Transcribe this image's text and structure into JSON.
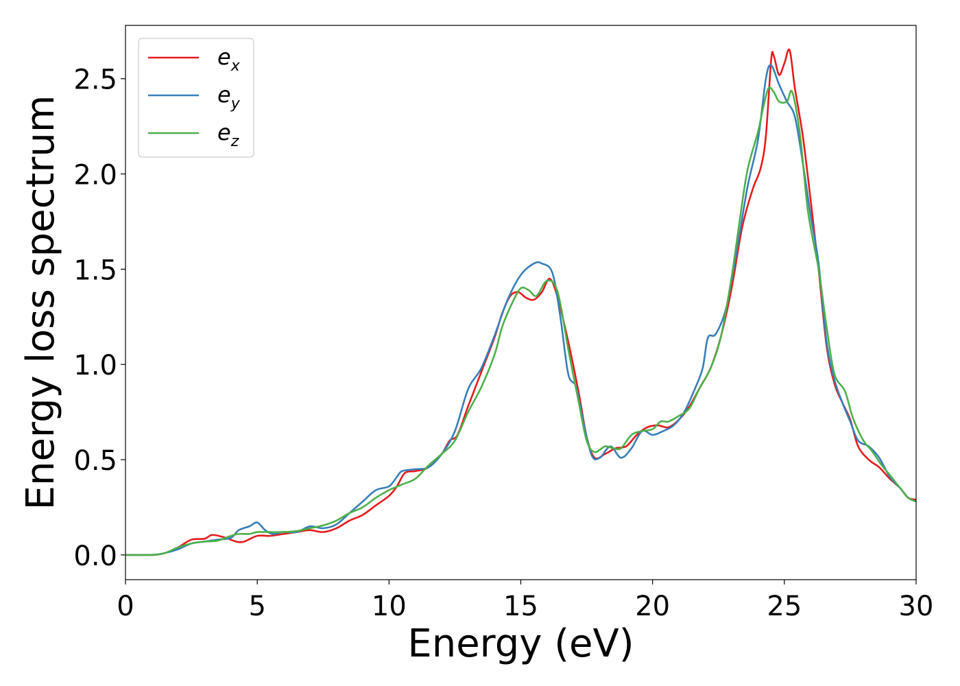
{
  "chart_data": {
    "type": "line",
    "xlabel": "Energy (eV)",
    "ylabel": "Energy loss spectrum",
    "xlim": [
      0,
      30
    ],
    "ylim": [
      -0.13,
      2.78
    ],
    "xticks": [
      0,
      5,
      10,
      15,
      20,
      25,
      30
    ],
    "xtick_labels": [
      "0",
      "5",
      "10",
      "15",
      "20",
      "25",
      "30"
    ],
    "yticks": [
      0.0,
      0.5,
      1.0,
      1.5,
      2.0,
      2.5
    ],
    "ytick_labels": [
      "0.0",
      "0.5",
      "1.0",
      "1.5",
      "2.0",
      "2.5"
    ],
    "grid": false,
    "legend_position": "top-left",
    "series": [
      {
        "name": "e_x",
        "label_main": "e",
        "label_sub": "x",
        "color": "#e41a1c",
        "points": [
          [
            0,
            0
          ],
          [
            1,
            0
          ],
          [
            1.5,
            0.01
          ],
          [
            2,
            0.04
          ],
          [
            2.5,
            0.08
          ],
          [
            3,
            0.085
          ],
          [
            3.3,
            0.105
          ],
          [
            3.8,
            0.09
          ],
          [
            4.2,
            0.07
          ],
          [
            4.5,
            0.07
          ],
          [
            5,
            0.1
          ],
          [
            5.5,
            0.1
          ],
          [
            6,
            0.11
          ],
          [
            6.5,
            0.12
          ],
          [
            7,
            0.13
          ],
          [
            7.5,
            0.12
          ],
          [
            8,
            0.14
          ],
          [
            8.5,
            0.18
          ],
          [
            9,
            0.21
          ],
          [
            9.5,
            0.26
          ],
          [
            10,
            0.31
          ],
          [
            10.3,
            0.36
          ],
          [
            10.6,
            0.43
          ],
          [
            11,
            0.44
          ],
          [
            11.5,
            0.46
          ],
          [
            12,
            0.53
          ],
          [
            12.3,
            0.6
          ],
          [
            12.6,
            0.63
          ],
          [
            13,
            0.78
          ],
          [
            13.5,
            0.96
          ],
          [
            14,
            1.14
          ],
          [
            14.3,
            1.27
          ],
          [
            14.6,
            1.36
          ],
          [
            14.9,
            1.38
          ],
          [
            15.2,
            1.35
          ],
          [
            15.5,
            1.34
          ],
          [
            15.8,
            1.38
          ],
          [
            16.1,
            1.45
          ],
          [
            16.4,
            1.35
          ],
          [
            16.8,
            1.12
          ],
          [
            17.2,
            0.85
          ],
          [
            17.5,
            0.62
          ],
          [
            17.8,
            0.51
          ],
          [
            18.2,
            0.53
          ],
          [
            18.6,
            0.56
          ],
          [
            19,
            0.57
          ],
          [
            19.4,
            0.63
          ],
          [
            19.8,
            0.67
          ],
          [
            20.2,
            0.68
          ],
          [
            20.6,
            0.67
          ],
          [
            21,
            0.71
          ],
          [
            21.4,
            0.78
          ],
          [
            21.8,
            0.88
          ],
          [
            22.2,
            0.98
          ],
          [
            22.6,
            1.15
          ],
          [
            23,
            1.4
          ],
          [
            23.4,
            1.72
          ],
          [
            23.8,
            1.92
          ],
          [
            24.1,
            2.03
          ],
          [
            24.3,
            2.2
          ],
          [
            24.5,
            2.6
          ],
          [
            24.6,
            2.62
          ],
          [
            24.8,
            2.52
          ],
          [
            25,
            2.58
          ],
          [
            25.2,
            2.65
          ],
          [
            25.4,
            2.45
          ],
          [
            25.7,
            2.2
          ],
          [
            26,
            1.86
          ],
          [
            26.3,
            1.5
          ],
          [
            26.6,
            1.1
          ],
          [
            26.9,
            0.9
          ],
          [
            27.2,
            0.8
          ],
          [
            27.5,
            0.71
          ],
          [
            27.8,
            0.57
          ],
          [
            28.2,
            0.5
          ],
          [
            28.6,
            0.46
          ],
          [
            29,
            0.4
          ],
          [
            29.4,
            0.35
          ],
          [
            29.7,
            0.3
          ],
          [
            30,
            0.29
          ]
        ]
      },
      {
        "name": "e_y",
        "label_main": "e",
        "label_sub": "y",
        "color": "#377eb8",
        "points": [
          [
            0,
            0
          ],
          [
            1,
            0
          ],
          [
            1.5,
            0.01
          ],
          [
            2,
            0.03
          ],
          [
            2.5,
            0.06
          ],
          [
            3,
            0.07
          ],
          [
            3.5,
            0.08
          ],
          [
            4,
            0.09
          ],
          [
            4.3,
            0.13
          ],
          [
            4.7,
            0.15
          ],
          [
            5,
            0.17
          ],
          [
            5.3,
            0.13
          ],
          [
            5.6,
            0.11
          ],
          [
            6,
            0.12
          ],
          [
            6.5,
            0.12
          ],
          [
            7,
            0.15
          ],
          [
            7.5,
            0.14
          ],
          [
            8,
            0.16
          ],
          [
            8.5,
            0.22
          ],
          [
            9,
            0.28
          ],
          [
            9.5,
            0.34
          ],
          [
            10,
            0.36
          ],
          [
            10.3,
            0.41
          ],
          [
            10.5,
            0.44
          ],
          [
            11,
            0.45
          ],
          [
            11.5,
            0.46
          ],
          [
            12,
            0.53
          ],
          [
            12.5,
            0.65
          ],
          [
            13,
            0.87
          ],
          [
            13.5,
            0.98
          ],
          [
            14,
            1.15
          ],
          [
            14.5,
            1.34
          ],
          [
            15,
            1.47
          ],
          [
            15.5,
            1.53
          ],
          [
            15.8,
            1.53
          ],
          [
            16.2,
            1.48
          ],
          [
            16.5,
            1.25
          ],
          [
            16.8,
            0.95
          ],
          [
            17.1,
            0.88
          ],
          [
            17.4,
            0.68
          ],
          [
            17.7,
            0.52
          ],
          [
            18,
            0.51
          ],
          [
            18.4,
            0.57
          ],
          [
            18.8,
            0.51
          ],
          [
            19.2,
            0.56
          ],
          [
            19.6,
            0.65
          ],
          [
            20,
            0.63
          ],
          [
            20.4,
            0.65
          ],
          [
            20.8,
            0.68
          ],
          [
            21.2,
            0.75
          ],
          [
            21.6,
            0.87
          ],
          [
            21.9,
            0.98
          ],
          [
            22.1,
            1.14
          ],
          [
            22.4,
            1.16
          ],
          [
            22.8,
            1.3
          ],
          [
            23.2,
            1.6
          ],
          [
            23.6,
            1.93
          ],
          [
            24,
            2.18
          ],
          [
            24.3,
            2.5
          ],
          [
            24.5,
            2.57
          ],
          [
            24.8,
            2.47
          ],
          [
            25.1,
            2.38
          ],
          [
            25.4,
            2.3
          ],
          [
            25.7,
            2.06
          ],
          [
            26,
            1.78
          ],
          [
            26.3,
            1.53
          ],
          [
            26.6,
            1.12
          ],
          [
            26.9,
            0.92
          ],
          [
            27.2,
            0.8
          ],
          [
            27.5,
            0.7
          ],
          [
            27.8,
            0.6
          ],
          [
            28.2,
            0.57
          ],
          [
            28.6,
            0.51
          ],
          [
            29,
            0.41
          ],
          [
            29.4,
            0.35
          ],
          [
            29.7,
            0.3
          ],
          [
            30,
            0.28
          ]
        ]
      },
      {
        "name": "e_z",
        "label_main": "e",
        "label_sub": "z",
        "color": "#4daf4a",
        "points": [
          [
            0,
            0
          ],
          [
            1,
            0
          ],
          [
            1.5,
            0.01
          ],
          [
            2,
            0.04
          ],
          [
            2.5,
            0.06
          ],
          [
            3,
            0.07
          ],
          [
            3.5,
            0.075
          ],
          [
            4,
            0.1
          ],
          [
            4.3,
            0.11
          ],
          [
            4.7,
            0.11
          ],
          [
            5,
            0.12
          ],
          [
            5.5,
            0.12
          ],
          [
            6,
            0.12
          ],
          [
            6.5,
            0.125
          ],
          [
            7,
            0.14
          ],
          [
            7.5,
            0.155
          ],
          [
            8,
            0.18
          ],
          [
            8.5,
            0.22
          ],
          [
            9,
            0.25
          ],
          [
            9.5,
            0.3
          ],
          [
            10,
            0.34
          ],
          [
            10.5,
            0.37
          ],
          [
            11,
            0.4
          ],
          [
            11.5,
            0.47
          ],
          [
            12,
            0.53
          ],
          [
            12.5,
            0.6
          ],
          [
            13,
            0.75
          ],
          [
            13.5,
            0.88
          ],
          [
            14,
            1.05
          ],
          [
            14.3,
            1.2
          ],
          [
            14.7,
            1.33
          ],
          [
            15,
            1.4
          ],
          [
            15.3,
            1.39
          ],
          [
            15.6,
            1.36
          ],
          [
            16,
            1.44
          ],
          [
            16.4,
            1.38
          ],
          [
            16.8,
            1.08
          ],
          [
            17.2,
            0.8
          ],
          [
            17.5,
            0.6
          ],
          [
            17.8,
            0.54
          ],
          [
            18.2,
            0.57
          ],
          [
            18.5,
            0.56
          ],
          [
            18.8,
            0.56
          ],
          [
            19.2,
            0.63
          ],
          [
            19.6,
            0.65
          ],
          [
            20,
            0.66
          ],
          [
            20.3,
            0.7
          ],
          [
            20.6,
            0.7
          ],
          [
            21,
            0.73
          ],
          [
            21.4,
            0.77
          ],
          [
            21.8,
            0.88
          ],
          [
            22.2,
            0.98
          ],
          [
            22.6,
            1.15
          ],
          [
            23,
            1.46
          ],
          [
            23.3,
            1.75
          ],
          [
            23.6,
            2.02
          ],
          [
            24,
            2.22
          ],
          [
            24.2,
            2.35
          ],
          [
            24.4,
            2.45
          ],
          [
            24.6,
            2.43
          ],
          [
            24.8,
            2.38
          ],
          [
            25.1,
            2.38
          ],
          [
            25.3,
            2.43
          ],
          [
            25.6,
            2.2
          ],
          [
            25.9,
            1.8
          ],
          [
            26.3,
            1.5
          ],
          [
            26.6,
            1.2
          ],
          [
            26.9,
            0.95
          ],
          [
            27.3,
            0.86
          ],
          [
            27.6,
            0.72
          ],
          [
            28,
            0.6
          ],
          [
            28.3,
            0.55
          ],
          [
            28.7,
            0.47
          ],
          [
            29,
            0.42
          ],
          [
            29.4,
            0.35
          ],
          [
            29.7,
            0.3
          ],
          [
            30,
            0.28
          ]
        ]
      }
    ]
  }
}
